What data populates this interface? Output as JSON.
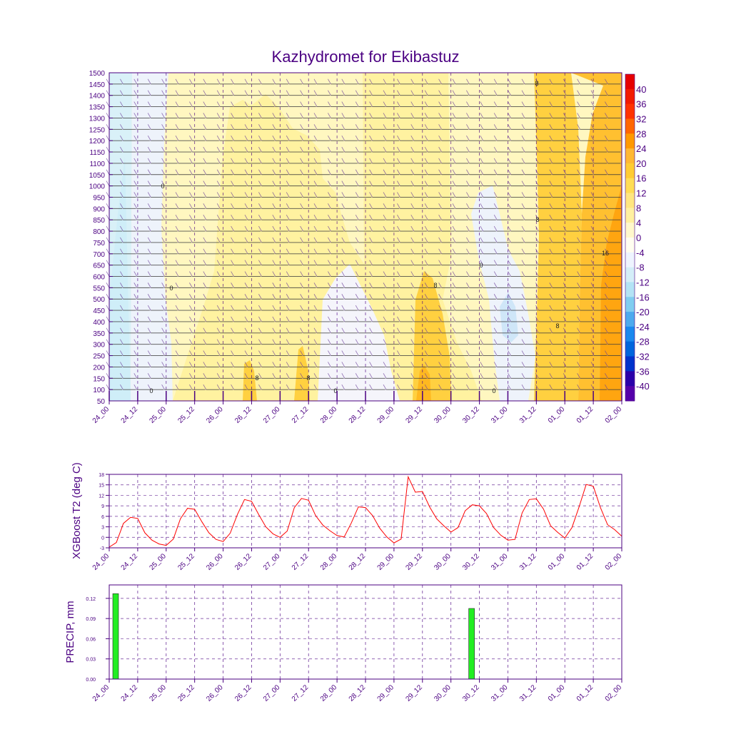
{
  "title": "Kazhydromet for Ekibastuz",
  "time_labels": [
    "24_00",
    "24_12",
    "25_00",
    "25_12",
    "26_00",
    "26_12",
    "27_00",
    "27_12",
    "28_00",
    "28_12",
    "29_00",
    "29_12",
    "30_00",
    "30_12",
    "31_00",
    "31_12",
    "01_00",
    "01_12",
    "02_00"
  ],
  "colors": {
    "axis": "#4b0082",
    "t2_line": "#ff0000",
    "precip_bar": "#22ee22"
  },
  "chart_data": [
    {
      "type": "heatmap",
      "name": "cross-section",
      "title": "Kazhydromet for Ekibastuz",
      "ylabel": "",
      "y_levels": [
        1500,
        1450,
        1400,
        1350,
        1300,
        1250,
        1200,
        1150,
        1100,
        1050,
        1000,
        950,
        900,
        850,
        800,
        750,
        700,
        650,
        600,
        550,
        500,
        450,
        400,
        350,
        300,
        250,
        200,
        150,
        100,
        50
      ],
      "colorbar": {
        "labels": [
          "40",
          "36",
          "32",
          "28",
          "24",
          "20",
          "16",
          "12",
          "8",
          "4",
          "0",
          "-4",
          "-8",
          "-12",
          "-16",
          "-20",
          "-24",
          "-28",
          "-32",
          "-36",
          "-40"
        ],
        "colors": [
          "#e60000",
          "#f21b00",
          "#ff3300",
          "#ff6600",
          "#ff9900",
          "#ffb833",
          "#ffcc33",
          "#ffdd55",
          "#ffe680",
          "#fff0a0",
          "#fff8cc",
          "#fffdf0",
          "#eef4ff",
          "#d4eef8",
          "#b3e3f5",
          "#80cdf0",
          "#4daaee",
          "#1a88ee",
          "#0066dd",
          "#0033cc",
          "#2a00aa",
          "#5500aa"
        ]
      },
      "contour_labels": [
        "0",
        "0",
        "0",
        "0",
        "0",
        "0",
        "8",
        "8",
        "8",
        "8",
        "8",
        "8",
        "16"
      ]
    },
    {
      "type": "line",
      "name": "XGBoost T2",
      "ylabel": "XGBoost T2 (deg C)",
      "yticks": [
        "18",
        "15",
        "12",
        "9",
        "6",
        "3",
        "0",
        "-3"
      ],
      "ylim": [
        -3,
        18
      ],
      "x": [
        0,
        3,
        6,
        9,
        12,
        15,
        18,
        21,
        24,
        27,
        30,
        33,
        36,
        39,
        42,
        45,
        48,
        51,
        54,
        57,
        60,
        63,
        66,
        69,
        72,
        75,
        78,
        81,
        84,
        87,
        90,
        93,
        96,
        99,
        102,
        105,
        108,
        111,
        114,
        117,
        120,
        123,
        126,
        129,
        132,
        135,
        138,
        141,
        144,
        147,
        150,
        153,
        156,
        159,
        162,
        165,
        168,
        171,
        174,
        177,
        180,
        183,
        186,
        189,
        192,
        195,
        198,
        201,
        204,
        207,
        210,
        213,
        216
      ],
      "values": [
        -2.8,
        -1.5,
        4,
        5.7,
        5.4,
        1.3,
        -0.8,
        -1.9,
        -2.3,
        -0.5,
        5.3,
        8.3,
        8,
        4.5,
        1.3,
        -0.6,
        -1.2,
        1.2,
        6.5,
        10.8,
        10.3,
        6.5,
        3,
        1,
        0,
        1.8,
        8.5,
        11.1,
        10.6,
        6.2,
        3.5,
        1.9,
        0.5,
        0.1,
        4.1,
        8.7,
        8.5,
        6.2,
        2.6,
        0.1,
        -1.6,
        -0.5,
        17.3,
        12.9,
        13.1,
        8.7,
        5.3,
        3.3,
        1.5,
        2.8,
        7.6,
        9.3,
        9,
        6.8,
        2.8,
        0.6,
        -0.8,
        -0.6,
        7,
        10.8,
        11,
        8.1,
        3.3,
        1.4,
        -0.2,
        2.8,
        8.7,
        15.1,
        14.6,
        8.5,
        3.6,
        2.2,
        0.3
      ]
    },
    {
      "type": "bar",
      "name": "PRECIP",
      "ylabel": "PRECIP, mm",
      "yticks": [
        "0.12",
        "0.09",
        "0.06",
        "0.03",
        "0.00"
      ],
      "ylim": [
        0,
        0.14
      ],
      "bars": [
        {
          "x_hours": 0,
          "value": 0.127
        },
        {
          "x_hours": 150,
          "value": 0.105
        }
      ]
    }
  ]
}
